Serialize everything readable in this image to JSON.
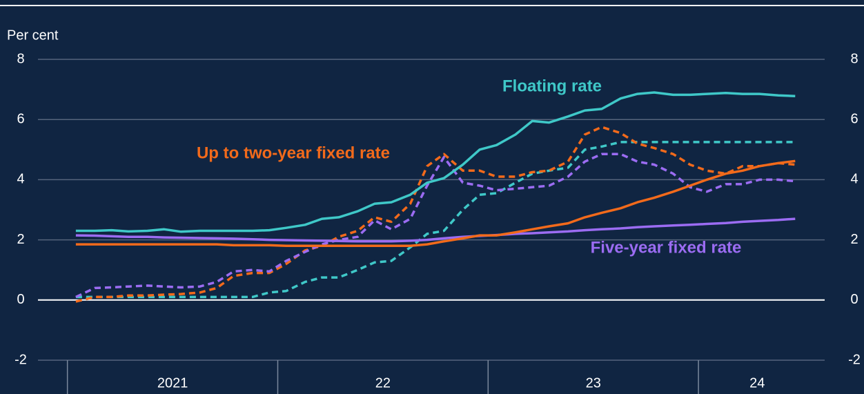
{
  "chart_data": {
    "type": "line",
    "y_label": "Per cent",
    "xlim": [
      2020.86,
      2024.6
    ],
    "xticks": [
      {
        "value": 2021,
        "label": "2021"
      },
      {
        "value": 2022,
        "label": "22"
      },
      {
        "value": 2023,
        "label": "23"
      },
      {
        "value": 2024,
        "label": "24"
      }
    ],
    "ylim": [
      -2,
      8
    ],
    "yticks": [
      -2,
      0,
      2,
      4,
      6,
      8
    ],
    "grid": true,
    "x": [
      2021.04,
      2021.13,
      2021.21,
      2021.29,
      2021.38,
      2021.46,
      2021.54,
      2021.63,
      2021.71,
      2021.79,
      2021.88,
      2021.96,
      2022.04,
      2022.13,
      2022.21,
      2022.29,
      2022.38,
      2022.46,
      2022.54,
      2022.63,
      2022.71,
      2022.79,
      2022.88,
      2022.96,
      2023.04,
      2023.13,
      2023.21,
      2023.29,
      2023.38,
      2023.46,
      2023.54,
      2023.63,
      2023.71,
      2023.79,
      2023.88,
      2023.96,
      2024.04,
      2024.13,
      2024.21,
      2024.29,
      2024.38,
      2024.46
    ],
    "series": [
      {
        "name": "Floating rate",
        "color": "#3fc8c8",
        "dashed": false,
        "values": [
          2.3,
          2.3,
          2.32,
          2.28,
          2.3,
          2.35,
          2.27,
          2.3,
          2.3,
          2.3,
          2.3,
          2.32,
          2.4,
          2.5,
          2.7,
          2.75,
          2.95,
          3.2,
          3.25,
          3.5,
          3.9,
          4.05,
          4.5,
          5.0,
          5.15,
          5.5,
          5.95,
          5.9,
          6.1,
          6.3,
          6.35,
          6.7,
          6.85,
          6.9,
          6.82,
          6.82,
          6.85,
          6.88,
          6.85,
          6.85,
          6.8,
          6.78
        ]
      },
      {
        "color": "#3fc8c8",
        "dashed": true,
        "values": [
          0.1,
          0.1,
          0.1,
          0.1,
          0.1,
          0.1,
          0.1,
          0.1,
          0.1,
          0.1,
          0.1,
          0.25,
          0.3,
          0.6,
          0.75,
          0.75,
          1.0,
          1.25,
          1.3,
          1.75,
          2.2,
          2.3,
          3.0,
          3.5,
          3.55,
          3.9,
          4.2,
          4.3,
          4.4,
          5.0,
          5.1,
          5.25,
          5.25,
          5.25,
          5.25,
          5.25,
          5.25,
          5.25,
          5.25,
          5.25,
          5.25,
          5.25
        ]
      },
      {
        "name": "Up to two-year fixed rate",
        "color": "#f26a1b",
        "dashed": false,
        "values": [
          1.85,
          1.85,
          1.85,
          1.85,
          1.85,
          1.85,
          1.85,
          1.85,
          1.85,
          1.82,
          1.82,
          1.82,
          1.8,
          1.8,
          1.8,
          1.8,
          1.8,
          1.8,
          1.8,
          1.8,
          1.85,
          1.95,
          2.05,
          2.15,
          2.15,
          2.25,
          2.35,
          2.45,
          2.55,
          2.75,
          2.9,
          3.05,
          3.25,
          3.4,
          3.6,
          3.8,
          4.0,
          4.2,
          4.3,
          4.45,
          4.55,
          4.62
        ]
      },
      {
        "color": "#f26a1b",
        "dashed": true,
        "values": [
          -0.05,
          0.1,
          0.1,
          0.15,
          0.15,
          0.18,
          0.2,
          0.25,
          0.4,
          0.8,
          0.9,
          0.9,
          1.2,
          1.65,
          1.8,
          2.1,
          2.3,
          2.75,
          2.6,
          3.2,
          4.45,
          4.85,
          4.3,
          4.3,
          4.1,
          4.1,
          4.25,
          4.3,
          4.6,
          5.5,
          5.75,
          5.55,
          5.2,
          5.05,
          4.85,
          4.5,
          4.3,
          4.2,
          4.45,
          4.45,
          4.55,
          4.5
        ]
      },
      {
        "name": "Five-year fixed rate",
        "color": "#9b6cf2",
        "dashed": false,
        "values": [
          2.15,
          2.14,
          2.12,
          2.1,
          2.1,
          2.08,
          2.07,
          2.06,
          2.05,
          2.04,
          2.02,
          2.0,
          1.99,
          1.98,
          1.97,
          1.96,
          1.95,
          1.95,
          1.95,
          1.97,
          2.0,
          2.05,
          2.1,
          2.13,
          2.16,
          2.2,
          2.22,
          2.25,
          2.28,
          2.32,
          2.35,
          2.38,
          2.42,
          2.45,
          2.48,
          2.5,
          2.53,
          2.56,
          2.6,
          2.63,
          2.66,
          2.7
        ]
      },
      {
        "color": "#9b6cf2",
        "dashed": true,
        "values": [
          0.1,
          0.4,
          0.42,
          0.45,
          0.48,
          0.45,
          0.42,
          0.45,
          0.6,
          0.95,
          1.0,
          0.95,
          1.3,
          1.6,
          1.85,
          2.0,
          2.1,
          2.65,
          2.35,
          2.7,
          3.8,
          4.75,
          3.9,
          3.8,
          3.65,
          3.7,
          3.75,
          3.8,
          4.1,
          4.6,
          4.85,
          4.85,
          4.6,
          4.5,
          4.2,
          3.75,
          3.6,
          3.85,
          3.85,
          4.0,
          4.0,
          3.95
        ]
      }
    ]
  }
}
